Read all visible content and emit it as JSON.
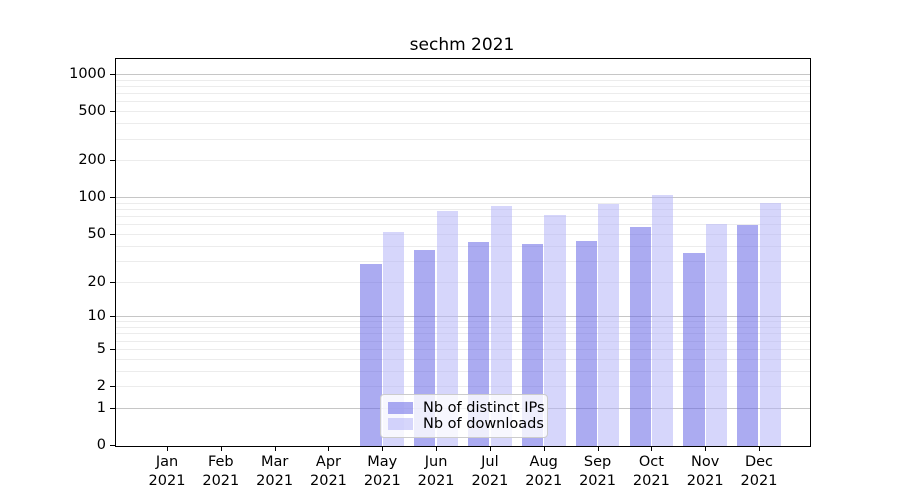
{
  "chart_data": {
    "type": "bar",
    "title": "sechm 2021",
    "x": {
      "months": [
        "Jan",
        "Feb",
        "Mar",
        "Apr",
        "May",
        "Jun",
        "Jul",
        "Aug",
        "Sep",
        "Oct",
        "Nov",
        "Dec"
      ],
      "year": "2021"
    },
    "series": [
      {
        "name": "Nb of distinct IPs",
        "color": "#6666e6",
        "alpha": 0.55,
        "values": [
          0,
          0,
          0,
          0,
          28,
          37,
          43,
          41,
          44,
          57,
          35,
          59
        ]
      },
      {
        "name": "Nb of downloads",
        "color": "#b4b4f8",
        "alpha": 0.55,
        "values": [
          0,
          0,
          0,
          0,
          52,
          77,
          84,
          71,
          88,
          104,
          60,
          90
        ]
      }
    ],
    "yscale": "log1p",
    "ylim": [
      0,
      1300
    ],
    "yticks": [
      0,
      1,
      2,
      5,
      10,
      20,
      50,
      100,
      200,
      500,
      1000
    ],
    "major_gridline_values": [
      1,
      10,
      100,
      1000
    ],
    "grid": "both",
    "legend_position": "lower-center-inside",
    "colors": {
      "axis": "#000000",
      "grid_major": "#c6c6c6",
      "grid_minor": "#ececec",
      "text": "#000000",
      "legend_border": "#cccccc"
    }
  }
}
